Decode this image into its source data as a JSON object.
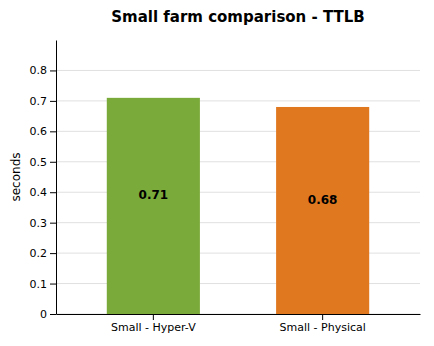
{
  "chart_data": {
    "type": "bar",
    "title": "Small farm comparison - TTLB",
    "categories": [
      "Small - Hyper-V",
      "Small - Physical"
    ],
    "values": [
      0.71,
      0.68
    ],
    "colors": [
      "#7aaa3a",
      "#e07820"
    ],
    "ylabel": "seconds",
    "ylim": [
      0,
      0.9
    ],
    "yticks": [
      0,
      0.1,
      0.2,
      0.3,
      0.4,
      0.5,
      0.6,
      0.7,
      0.8
    ],
    "grid": true,
    "data_labels": true
  }
}
